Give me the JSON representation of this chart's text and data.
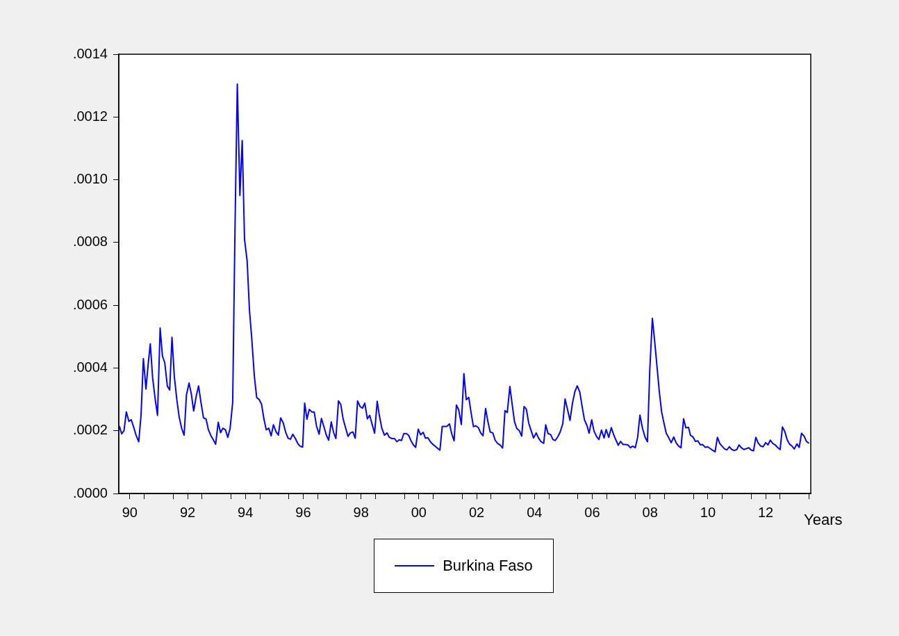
{
  "chart_data": {
    "type": "line",
    "xlabel": "Years",
    "legend": "bottom",
    "xlim": [
      1989.62,
      2013.56
    ],
    "xticks": [
      {
        "value": 1990,
        "label": "90"
      },
      {
        "value": 1990.5,
        "label": null
      },
      {
        "value": 1991.5,
        "label": null
      },
      {
        "value": 1992,
        "label": "92"
      },
      {
        "value": 1992.5,
        "label": null
      },
      {
        "value": 1993.5,
        "label": null
      },
      {
        "value": 1994,
        "label": "94"
      },
      {
        "value": 1994.5,
        "label": null
      },
      {
        "value": 1995.5,
        "label": null
      },
      {
        "value": 1996,
        "label": "96"
      },
      {
        "value": 1996.5,
        "label": null
      },
      {
        "value": 1997.5,
        "label": null
      },
      {
        "value": 1998,
        "label": "98"
      },
      {
        "value": 1998.5,
        "label": null
      },
      {
        "value": 1999.5,
        "label": null
      },
      {
        "value": 2000,
        "label": "00"
      },
      {
        "value": 2000.5,
        "label": null
      },
      {
        "value": 2001.5,
        "label": null
      },
      {
        "value": 2002,
        "label": "02"
      },
      {
        "value": 2002.5,
        "label": null
      },
      {
        "value": 2003.5,
        "label": null
      },
      {
        "value": 2004,
        "label": "04"
      },
      {
        "value": 2004.5,
        "label": null
      },
      {
        "value": 2005.5,
        "label": null
      },
      {
        "value": 2006,
        "label": "06"
      },
      {
        "value": 2006.5,
        "label": null
      },
      {
        "value": 2007.5,
        "label": null
      },
      {
        "value": 2008,
        "label": "08"
      },
      {
        "value": 2008.5,
        "label": null
      },
      {
        "value": 2009.5,
        "label": null
      },
      {
        "value": 2010,
        "label": "10"
      },
      {
        "value": 2010.5,
        "label": null
      },
      {
        "value": 2011.5,
        "label": null
      },
      {
        "value": 2012,
        "label": "12"
      },
      {
        "value": 2012.5,
        "label": null
      },
      {
        "value": 2013.5,
        "label": null
      }
    ],
    "ylim": [
      0,
      0.0014
    ],
    "yticks": [
      {
        "value": 0,
        "label": ".0000"
      },
      {
        "value": 0.0002,
        "label": ".0002"
      },
      {
        "value": 0.0004,
        "label": ".0004"
      },
      {
        "value": 0.0006,
        "label": ".0006"
      },
      {
        "value": 0.0008,
        "label": ".0008"
      },
      {
        "value": 0.001,
        "label": ".0010"
      },
      {
        "value": 0.0012,
        "label": ".0012"
      },
      {
        "value": 0.0014,
        "label": ".0014"
      }
    ],
    "x": [
      1989.64,
      1989.72,
      1989.8,
      1989.88,
      1989.97,
      1990.05,
      1990.14,
      1990.22,
      1990.31,
      1990.39,
      1990.47,
      1990.56,
      1990.64,
      1990.71,
      1990.79,
      1990.88,
      1990.96,
      1991.05,
      1991.13,
      1991.21,
      1991.3,
      1991.38,
      1991.46,
      1991.54,
      1991.63,
      1991.71,
      1991.8,
      1991.88,
      1991.96,
      1992.05,
      1992.13,
      1992.21,
      1992.3,
      1992.38,
      1992.46,
      1992.55,
      1992.64,
      1992.72,
      1992.81,
      1992.89,
      1992.97,
      1993.06,
      1993.14,
      1993.22,
      1993.31,
      1993.39,
      1993.47,
      1993.56,
      1993.64,
      1993.72,
      1993.81,
      1993.89,
      1993.97,
      1994.06,
      1994.14,
      1994.22,
      1994.31,
      1994.39,
      1994.48,
      1994.56,
      1994.64,
      1994.72,
      1994.81,
      1994.89,
      1994.97,
      1995.06,
      1995.14,
      1995.22,
      1995.31,
      1995.39,
      1995.48,
      1995.56,
      1995.64,
      1995.73,
      1995.81,
      1995.89,
      1995.98,
      1996.05,
      1996.13,
      1996.21,
      1996.3,
      1996.38,
      1996.46,
      1996.55,
      1996.63,
      1996.72,
      1996.8,
      1996.88,
      1996.97,
      1997.05,
      1997.13,
      1997.22,
      1997.3,
      1997.38,
      1997.47,
      1997.55,
      1997.63,
      1997.72,
      1997.8,
      1997.88,
      1997.97,
      1998.05,
      1998.13,
      1998.22,
      1998.3,
      1998.38,
      1998.47,
      1998.56,
      1998.63,
      1998.72,
      1998.81,
      1998.9,
      1998.98,
      1999.07,
      1999.16,
      1999.24,
      1999.32,
      1999.4,
      1999.48,
      1999.57,
      1999.65,
      1999.73,
      1999.81,
      1999.89,
      1999.98,
      2000.06,
      2000.15,
      2000.23,
      2000.31,
      2000.4,
      2000.48,
      2000.56,
      2000.65,
      2000.73,
      2000.81,
      2000.89,
      2000.97,
      2001.06,
      2001.14,
      2001.22,
      2001.3,
      2001.38,
      2001.47,
      2001.56,
      2001.64,
      2001.73,
      2001.81,
      2001.89,
      2001.97,
      2002.06,
      2002.14,
      2002.22,
      2002.31,
      2002.39,
      2002.47,
      2002.56,
      2002.64,
      2002.72,
      2002.81,
      2002.9,
      2002.98,
      2003.06,
      2003.15,
      2003.23,
      2003.31,
      2003.39,
      2003.47,
      2003.56,
      2003.64,
      2003.72,
      2003.8,
      2003.89,
      2003.97,
      2004.06,
      2004.14,
      2004.22,
      2004.32,
      2004.39,
      2004.47,
      2004.56,
      2004.64,
      2004.72,
      2004.81,
      2004.89,
      2004.98,
      2005.06,
      2005.15,
      2005.23,
      2005.32,
      2005.4,
      2005.48,
      2005.57,
      2005.65,
      2005.73,
      2005.82,
      2005.89,
      2005.98,
      2006.06,
      2006.16,
      2006.23,
      2006.32,
      2006.41,
      2006.48,
      2006.57,
      2006.66,
      2006.74,
      2006.82,
      2006.9,
      2006.98,
      2007.07,
      2007.15,
      2007.23,
      2007.32,
      2007.4,
      2007.49,
      2007.57,
      2007.65,
      2007.74,
      2007.83,
      2007.91,
      2007.99,
      2008.08,
      2008.15,
      2008.23,
      2008.32,
      2008.4,
      2008.48,
      2008.56,
      2008.65,
      2008.73,
      2008.82,
      2008.9,
      2008.99,
      2009.07,
      2009.16,
      2009.24,
      2009.33,
      2009.4,
      2009.48,
      2009.57,
      2009.65,
      2009.74,
      2009.82,
      2009.91,
      2009.99,
      2010.07,
      2010.16,
      2010.25,
      2010.33,
      2010.41,
      2010.49,
      2010.58,
      2010.66,
      2010.74,
      2010.83,
      2010.91,
      2011.0,
      2011.08,
      2011.16,
      2011.25,
      2011.33,
      2011.42,
      2011.49,
      2011.58,
      2011.66,
      2011.74,
      2011.83,
      2011.91,
      2012.0,
      2012.08,
      2012.16,
      2012.25,
      2012.33,
      2012.42,
      2012.5,
      2012.58,
      2012.66,
      2012.75,
      2012.83,
      2012.91,
      2012.99,
      2013.08,
      2013.16,
      2013.24,
      2013.33,
      2013.41,
      2013.5
    ],
    "series": [
      {
        "name": "Burkina Faso",
        "color": "#0000ff",
        "values": [
          0.000215,
          0.00019,
          0.0002,
          0.00026,
          0.00023,
          0.000235,
          0.00021,
          0.000185,
          0.000165,
          0.00025,
          0.00043,
          0.000333,
          0.000416,
          0.000477,
          0.000369,
          0.0003,
          0.000249,
          0.000527,
          0.000438,
          0.000417,
          0.000342,
          0.00033,
          0.000498,
          0.000374,
          0.000297,
          0.000243,
          0.000206,
          0.000186,
          0.000314,
          0.000352,
          0.000317,
          0.000263,
          0.000311,
          0.000343,
          0.000292,
          0.000241,
          0.000237,
          0.000203,
          0.000184,
          0.000171,
          0.000157,
          0.000227,
          0.000194,
          0.000208,
          0.000203,
          0.000179,
          0.000207,
          0.00029,
          0.000844,
          0.001305,
          0.00095,
          0.001125,
          0.00081,
          0.000742,
          0.000585,
          0.000494,
          0.000374,
          0.000306,
          0.000299,
          0.000284,
          0.000238,
          0.000203,
          0.000208,
          0.000184,
          0.000219,
          0.000197,
          0.000186,
          0.000241,
          0.000225,
          0.000196,
          0.000176,
          0.000173,
          0.000189,
          0.000175,
          0.00016,
          0.000151,
          0.000148,
          0.000288,
          0.000237,
          0.000268,
          0.00026,
          0.00026,
          0.000215,
          0.000189,
          0.000239,
          0.000212,
          0.000186,
          0.00017,
          0.000228,
          0.000195,
          0.000175,
          0.000295,
          0.000284,
          0.000238,
          0.000208,
          0.000182,
          0.000193,
          0.000196,
          0.000176,
          0.000295,
          0.000277,
          0.000272,
          0.000288,
          0.000238,
          0.000249,
          0.000222,
          0.000192,
          0.000294,
          0.000251,
          0.000208,
          0.000186,
          0.000193,
          0.000179,
          0.000175,
          0.000175,
          0.000165,
          0.000171,
          0.000169,
          0.000191,
          0.000191,
          0.000185,
          0.000168,
          0.000155,
          0.000147,
          0.000205,
          0.000187,
          0.000195,
          0.000176,
          0.000178,
          0.000165,
          0.000157,
          0.000151,
          0.000144,
          0.000138,
          0.000214,
          0.000214,
          0.000214,
          0.000222,
          0.00019,
          0.000168,
          0.000282,
          0.000267,
          0.00022,
          0.000382,
          0.000299,
          0.000306,
          0.000256,
          0.000213,
          0.000216,
          0.00021,
          0.000193,
          0.000184,
          0.000271,
          0.000229,
          0.000196,
          0.000193,
          0.00017,
          0.00016,
          0.000155,
          0.000145,
          0.000264,
          0.000258,
          0.000341,
          0.000284,
          0.000229,
          0.000207,
          0.000201,
          0.000183,
          0.000277,
          0.000269,
          0.000225,
          0.000199,
          0.000177,
          0.000193,
          0.000177,
          0.000166,
          0.00016,
          0.000219,
          0.000191,
          0.000188,
          0.000172,
          0.000169,
          0.000181,
          0.000196,
          0.000222,
          0.000301,
          0.000266,
          0.000233,
          0.00029,
          0.000325,
          0.000343,
          0.000323,
          0.000277,
          0.000235,
          0.000216,
          0.000192,
          0.000235,
          0.000199,
          0.00018,
          0.000172,
          0.000202,
          0.000177,
          0.000204,
          0.000179,
          0.00021,
          0.000188,
          0.00017,
          0.000154,
          0.000166,
          0.000156,
          0.000156,
          0.000155,
          0.000146,
          0.000151,
          0.000146,
          0.000179,
          0.00025,
          0.000207,
          0.000179,
          0.000165,
          0.000393,
          0.000558,
          0.000495,
          0.000415,
          0.000325,
          0.00026,
          0.000225,
          0.000192,
          0.000177,
          0.000162,
          0.00018,
          0.000162,
          0.000151,
          0.000146,
          0.000238,
          0.000209,
          0.000211,
          0.000185,
          0.000181,
          0.000166,
          0.000168,
          0.000155,
          0.000156,
          0.000147,
          0.000149,
          0.000144,
          0.000138,
          0.000133,
          0.000179,
          0.00016,
          0.000151,
          0.000142,
          0.000139,
          0.000149,
          0.00014,
          0.000137,
          0.00014,
          0.000155,
          0.000146,
          0.00014,
          0.000143,
          0.000146,
          0.000139,
          0.000136,
          0.000179,
          0.000161,
          0.000151,
          0.000149,
          0.000162,
          0.000155,
          0.00017,
          0.000159,
          0.000155,
          0.000146,
          0.00014,
          0.000212,
          0.000198,
          0.00017,
          0.000157,
          0.000151,
          0.000142,
          0.000158,
          0.000147,
          0.000192,
          0.000183,
          0.000166,
          0.00016
        ]
      }
    ]
  }
}
